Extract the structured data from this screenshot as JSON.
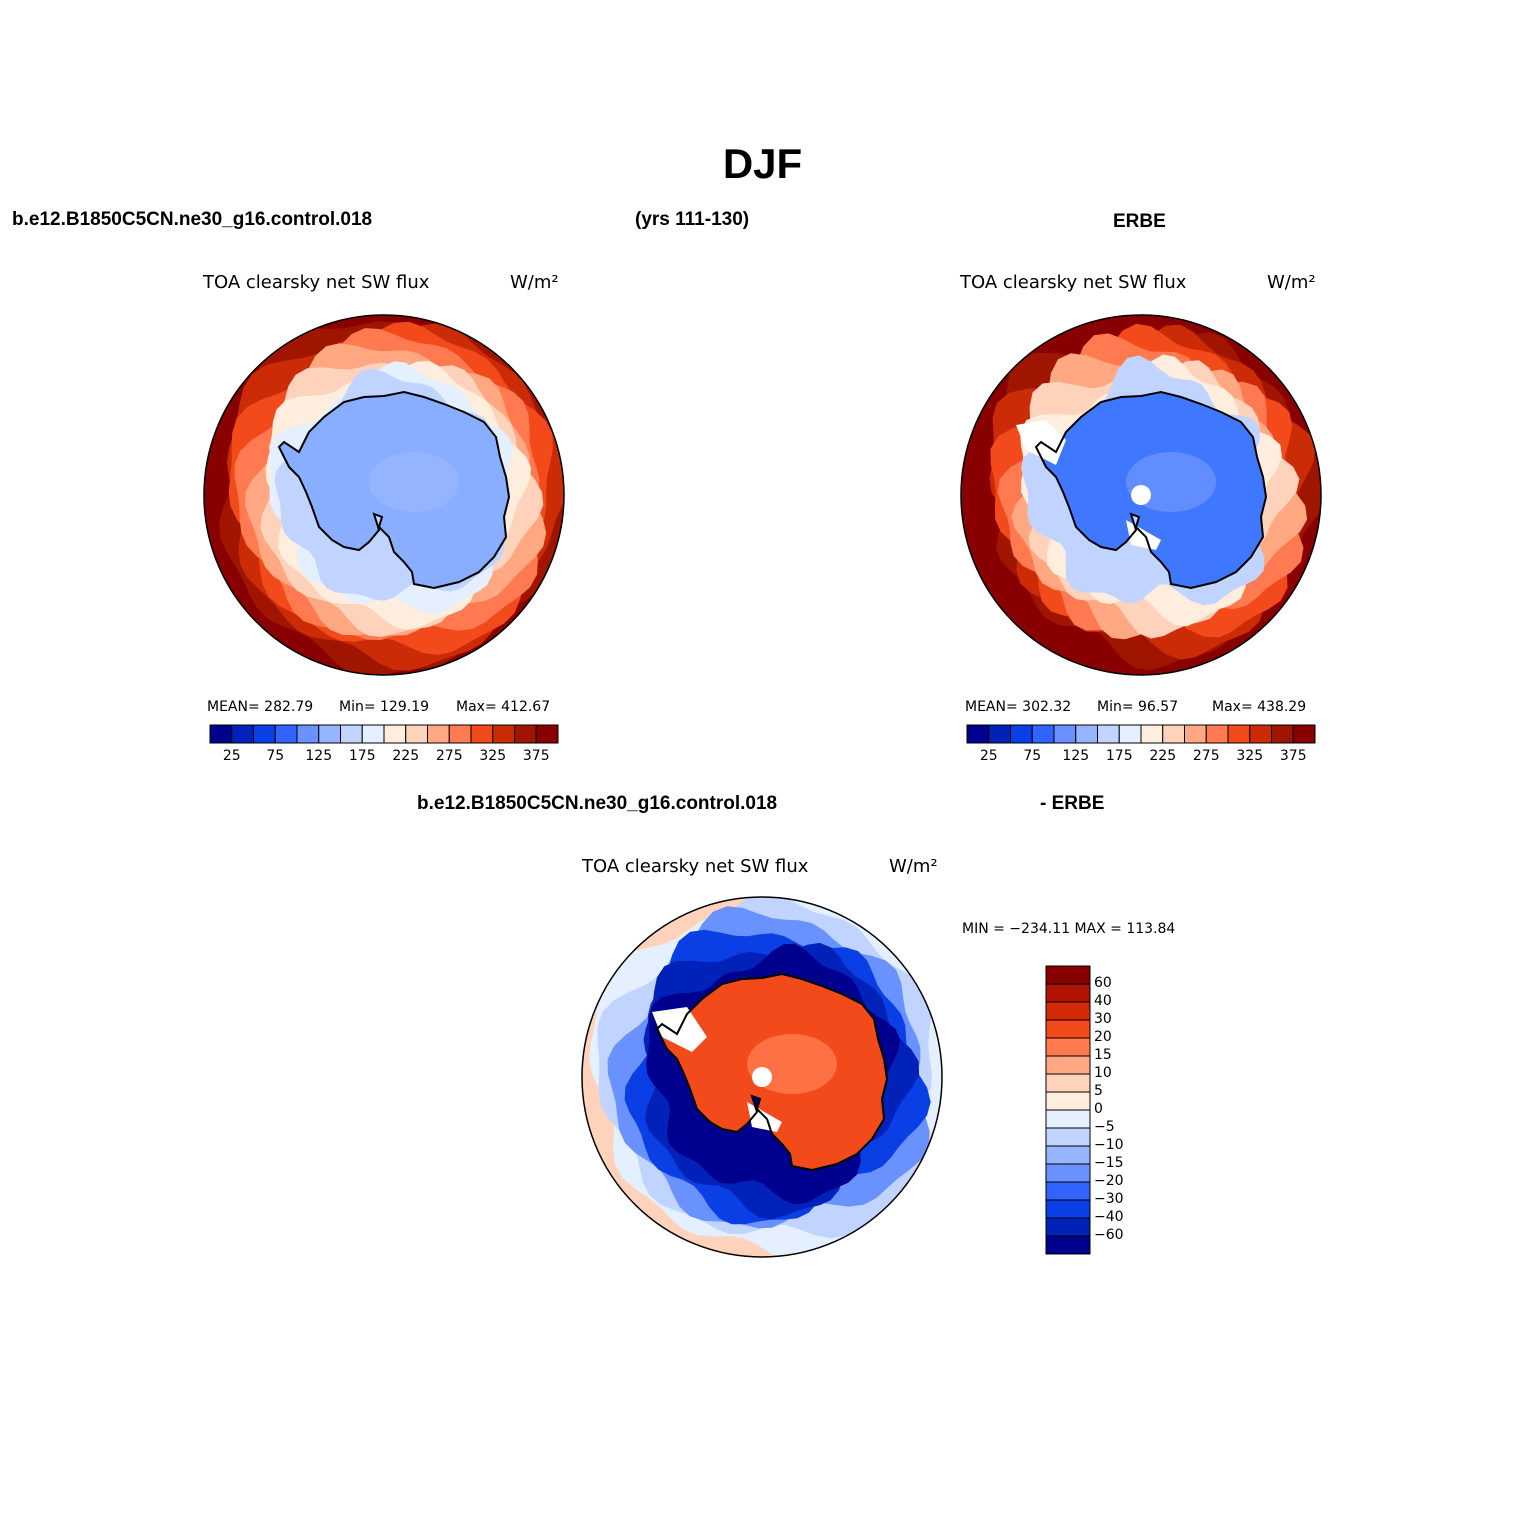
{
  "title": "DJF",
  "header": {
    "case": "b.e12.B1850C5CN.ne30_g16.control.018",
    "years": "(yrs 111-130)",
    "obs": "ERBE",
    "diff_case": "b.e12.B1850C5CN.ne30_g16.control.018",
    "diff_obs": "- ERBE"
  },
  "panels": {
    "model": {
      "variable": "TOA clearsky net SW flux",
      "units": "W/m²",
      "mean_text": "MEAN= 282.79",
      "min_text": "Min= 129.19",
      "max_text": "Max= 412.67"
    },
    "obs": {
      "variable": "TOA clearsky net SW flux",
      "units": "W/m²",
      "mean_text": "MEAN= 302.32",
      "min_text": "Min=  96.57",
      "max_text": "Max= 438.29"
    },
    "diff": {
      "variable": "TOA clearsky net SW flux",
      "units": "W/m²",
      "minmax_text": "MIN = −234.11  MAX = 113.84"
    }
  },
  "colorbar_main": {
    "colors": [
      "#00008f",
      "#0022b8",
      "#0a3fe6",
      "#3262ff",
      "#6a92ff",
      "#97b5ff",
      "#c0d4ff",
      "#e4efff",
      "#ffeedd",
      "#ffd2bc",
      "#ffa882",
      "#ff7a50",
      "#f24a1b",
      "#cc2b08",
      "#a01500",
      "#880000"
    ],
    "labels": [
      "25",
      "75",
      "125",
      "175",
      "225",
      "275",
      "325",
      "375"
    ]
  },
  "colorbar_diff": {
    "colors": [
      "#880000",
      "#b01400",
      "#d52a08",
      "#f24a1b",
      "#ff7a50",
      "#ffa882",
      "#ffd2bc",
      "#ffeedd",
      "#e4efff",
      "#c0d4ff",
      "#97b5ff",
      "#6a92ff",
      "#3262ff",
      "#0a3fe6",
      "#0022b8",
      "#00008f"
    ],
    "labels": [
      "60",
      "40",
      "30",
      "20",
      "15",
      "10",
      "5",
      "0",
      "−5",
      "−10",
      "−15",
      "−20",
      "−30",
      "−40",
      "−60"
    ]
  },
  "fields": {
    "model": {
      "ocean_outer": "#880000",
      "ring_colors": [
        "#a01500",
        "#cc2b08",
        "#f24a1b",
        "#ff7a50",
        "#ffa882",
        "#ffd2bc",
        "#ffeedd",
        "#e4efff",
        "#c0d4ff"
      ],
      "land": "#8aaeff",
      "land_hi": "#97b5ff"
    },
    "obs": {
      "ocean_outer": "#880000",
      "ring_colors": [
        "#a01500",
        "#cc2b08",
        "#f24a1b",
        "#ff7a50",
        "#ffa882",
        "#ffd2bc",
        "#ffeedd",
        "#c0d4ff"
      ],
      "land": "#3f78ff",
      "land_hi": "#6a92ff"
    },
    "diff": {
      "ocean_outer": "#ffd2bc",
      "ring_colors": [
        "#e4efff",
        "#c0d4ff",
        "#6a92ff",
        "#0a3fe6",
        "#0022b8",
        "#00008f"
      ],
      "land": "#f24a1b",
      "land_hi": "#ff7a50"
    }
  }
}
